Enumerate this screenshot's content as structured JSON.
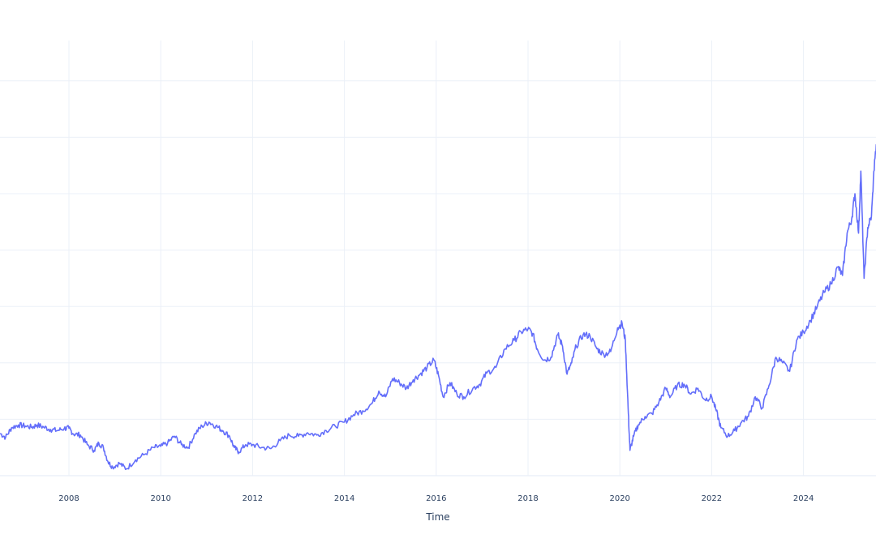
{
  "chart_data": {
    "type": "line",
    "title": "",
    "xlabel": "Time",
    "ylabel": "",
    "y_units_note": "No y-axis tick labels visible; values expressed in gridline units (0 = bottom gridline, 7 = top gridline)",
    "xlim": [
      2006.5,
      2025.7
    ],
    "ylim": [
      -0.1,
      7.8
    ],
    "grid": true,
    "legend": false,
    "x_ticks": [
      "2008",
      "2010",
      "2012",
      "2014",
      "2016",
      "2018",
      "2020",
      "2022",
      "2024"
    ],
    "line_color": "#636efa",
    "series": [
      {
        "name": "series",
        "x": [
          2006.5,
          2006.62,
          2006.75,
          2006.9,
          2007.05,
          2007.2,
          2007.3,
          2007.45,
          2007.6,
          2007.75,
          2007.9,
          2008.0,
          2008.1,
          2008.25,
          2008.4,
          2008.55,
          2008.65,
          2008.75,
          2008.85,
          2008.95,
          2009.1,
          2009.25,
          2009.45,
          2009.65,
          2009.85,
          2010.0,
          2010.15,
          2010.3,
          2010.45,
          2010.6,
          2010.75,
          2010.9,
          2011.05,
          2011.2,
          2011.35,
          2011.5,
          2011.6,
          2011.7,
          2011.85,
          2012.0,
          2012.2,
          2012.4,
          2012.6,
          2012.8,
          2013.0,
          2013.2,
          2013.4,
          2013.6,
          2013.8,
          2014.0,
          2014.2,
          2014.4,
          2014.6,
          2014.75,
          2014.9,
          2015.05,
          2015.2,
          2015.35,
          2015.5,
          2015.65,
          2015.8,
          2015.95,
          2016.05,
          2016.15,
          2016.3,
          2016.45,
          2016.6,
          2016.8,
          2016.95,
          2017.1,
          2017.3,
          2017.5,
          2017.7,
          2017.85,
          2018.0,
          2018.1,
          2018.2,
          2018.35,
          2018.5,
          2018.65,
          2018.75,
          2018.85,
          2018.95,
          2019.05,
          2019.2,
          2019.35,
          2019.5,
          2019.65,
          2019.8,
          2019.95,
          2020.05,
          2020.12,
          2020.18,
          2020.22,
          2020.3,
          2020.4,
          2020.55,
          2020.7,
          2020.85,
          2021.0,
          2021.1,
          2021.25,
          2021.4,
          2021.55,
          2021.7,
          2021.85,
          2022.0,
          2022.1,
          2022.2,
          2022.35,
          2022.5,
          2022.65,
          2022.8,
          2022.95,
          2023.1,
          2023.25,
          2023.4,
          2023.55,
          2023.7,
          2023.85,
          2024.0,
          2024.15,
          2024.3,
          2024.45,
          2024.6,
          2024.75,
          2024.85,
          2024.95,
          2025.05,
          2025.12,
          2025.2,
          2025.25,
          2025.32,
          2025.4,
          2025.48,
          2025.55,
          2025.62,
          2025.68,
          2025.7
        ],
        "values": [
          0.75,
          0.68,
          0.85,
          0.9,
          0.88,
          0.86,
          0.9,
          0.86,
          0.82,
          0.8,
          0.84,
          0.84,
          0.74,
          0.72,
          0.55,
          0.45,
          0.58,
          0.5,
          0.25,
          0.15,
          0.22,
          0.12,
          0.28,
          0.38,
          0.5,
          0.52,
          0.58,
          0.7,
          0.55,
          0.5,
          0.75,
          0.88,
          0.95,
          0.88,
          0.8,
          0.7,
          0.5,
          0.42,
          0.55,
          0.55,
          0.5,
          0.48,
          0.62,
          0.72,
          0.7,
          0.76,
          0.72,
          0.8,
          0.88,
          0.95,
          1.08,
          1.15,
          1.28,
          1.5,
          1.4,
          1.72,
          1.65,
          1.55,
          1.7,
          1.8,
          1.92,
          2.05,
          1.78,
          1.4,
          1.65,
          1.45,
          1.4,
          1.55,
          1.62,
          1.82,
          1.92,
          2.25,
          2.4,
          2.55,
          2.6,
          2.52,
          2.25,
          2.05,
          2.1,
          2.5,
          2.3,
          1.8,
          2.0,
          2.3,
          2.5,
          2.48,
          2.25,
          2.15,
          2.2,
          2.62,
          2.7,
          2.4,
          1.2,
          0.45,
          0.7,
          0.9,
          1.05,
          1.1,
          1.3,
          1.55,
          1.4,
          1.6,
          1.62,
          1.45,
          1.55,
          1.35,
          1.4,
          1.15,
          0.85,
          0.7,
          0.8,
          0.95,
          1.05,
          1.4,
          1.2,
          1.6,
          2.1,
          2.0,
          1.85,
          2.4,
          2.55,
          2.75,
          3.0,
          3.25,
          3.4,
          3.7,
          3.55,
          4.3,
          4.55,
          5.0,
          4.3,
          5.4,
          3.5,
          4.4,
          4.6,
          5.6,
          6.0,
          7.0,
          6.9
        ]
      }
    ]
  }
}
